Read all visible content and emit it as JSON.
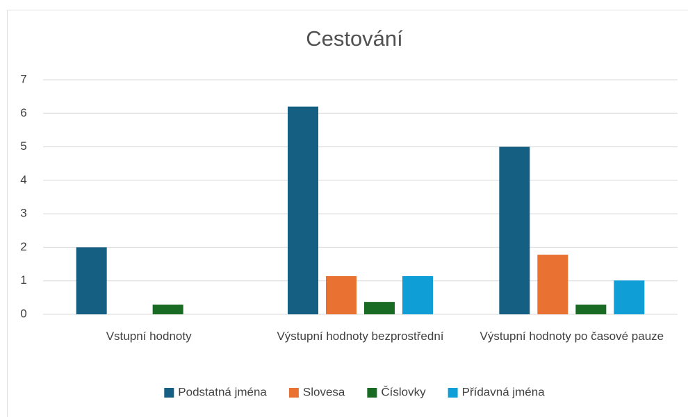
{
  "chart_data": {
    "type": "bar",
    "title": "Cestování",
    "categories": [
      "Vstupní hodnoty",
      "Výstupní hodnoty bezprostřední",
      "Výstupní hodnoty po časové pauze"
    ],
    "series": [
      {
        "name": "Podstatná jména",
        "color": "#156082",
        "values": [
          2,
          6.2,
          5
        ]
      },
      {
        "name": "Slovesa",
        "color": "#e97132",
        "values": [
          0,
          1.14,
          1.78
        ]
      },
      {
        "name": "Číslovky",
        "color": "#196b24",
        "values": [
          0.29,
          0.37,
          0.29
        ]
      },
      {
        "name": "Přídavná jména",
        "color": "#0f9ed5",
        "values": [
          0,
          1.14,
          1.01
        ]
      }
    ],
    "ylim": [
      0,
      7
    ],
    "yticks": [
      0,
      1,
      2,
      3,
      4,
      5,
      6,
      7
    ],
    "grid": true,
    "legend": "bottom"
  }
}
